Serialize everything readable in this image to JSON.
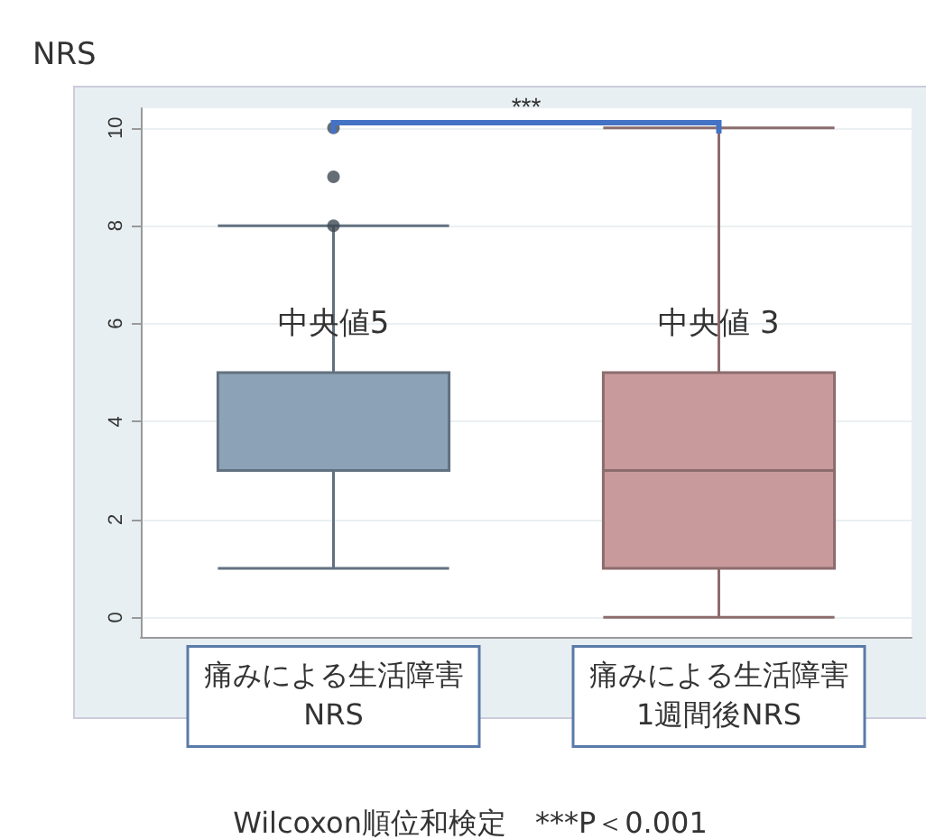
{
  "chart_data": {
    "type": "box",
    "ylabel": "NRS",
    "categories": [
      "痛みによる生活障害\nNRS",
      "痛みによる生活障害\n1週間後NRS"
    ],
    "boxes": [
      {
        "low": 1,
        "q1": 3,
        "median": 5,
        "q3": 5,
        "high": 8,
        "outliers": [
          8,
          9,
          10
        ]
      },
      {
        "low": 0,
        "q1": 1,
        "median": 3,
        "q3": 5,
        "high": 10
      }
    ],
    "colors": [
      "#8ca2b7",
      "#c89a9c"
    ],
    "ylim": [
      -0.4,
      10.4
    ],
    "yticks": [
      0,
      2,
      4,
      6,
      8,
      10
    ],
    "grid": "y",
    "annotations": [
      "***",
      {
        "text": "中央値5",
        "x": "痛みによる生活障害\nNRS",
        "y": 6
      },
      {
        "text": "中央値 3",
        "x": "痛みによる生活障害\n1週間後NRS",
        "y": 6
      },
      "Wilcoxon順位和検定　***P＜0.001"
    ]
  }
}
